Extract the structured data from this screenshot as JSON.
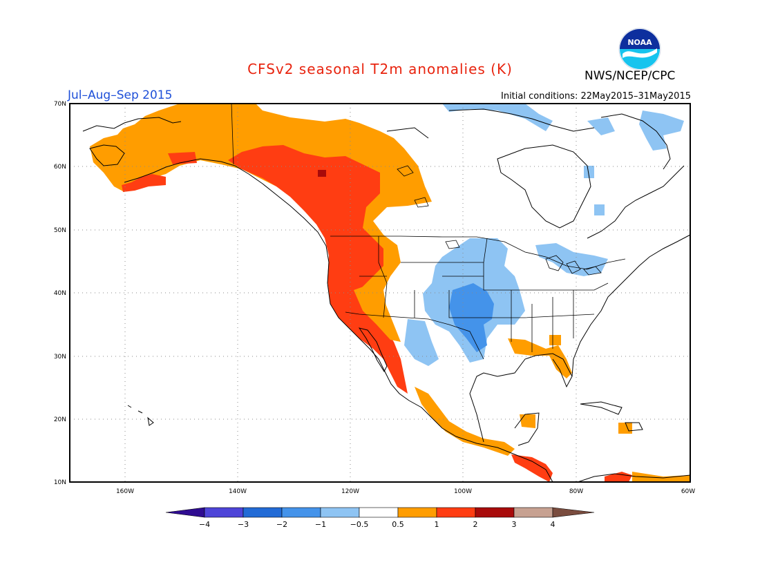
{
  "header": {
    "title": "CFSv2 seasonal T2m anomalies (K)",
    "season": "Jul–Aug–Sep 2015",
    "initial_conditions": "Initial conditions: 22May2015–31May2015",
    "agency": "NWS/NCEP/CPC",
    "logo_text": "NOAA"
  },
  "colors": {
    "title": "#e8230e",
    "season": "#1e4fd8",
    "c_m4": "#2f0c91",
    "c_m3": "#4e44d8",
    "c_m2": "#226bd6",
    "c_m1": "#4493ea",
    "c_m05": "#8ec4f3",
    "c_0": "#ffffff",
    "c_p05": "#ff9d00",
    "c_p1": "#ff3d12",
    "c_p2": "#a80a0a",
    "c_p3": "#c7a191",
    "c_p4": "#7a4c3e"
  },
  "axes": {
    "lon_labels": [
      "160W",
      "140W",
      "120W",
      "100W",
      "80W",
      "60W"
    ],
    "lat_labels": [
      "70N",
      "60N",
      "50N",
      "40N",
      "30N",
      "20N",
      "10N"
    ]
  },
  "colorbar": {
    "labels": [
      "−4",
      "−3",
      "−2",
      "−1",
      "−0.5",
      "0.5",
      "1",
      "2",
      "3",
      "4"
    ]
  }
}
